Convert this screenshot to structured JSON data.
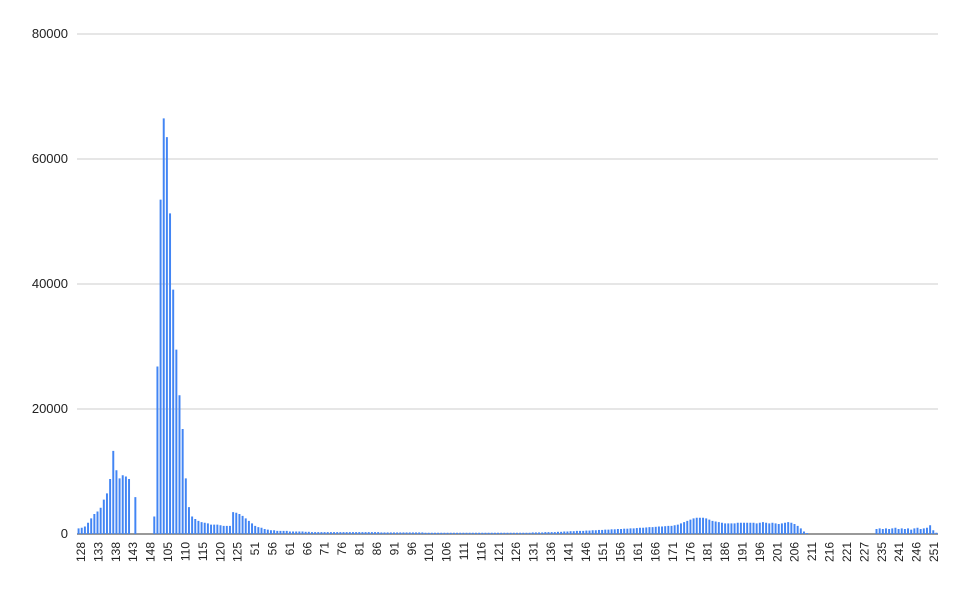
{
  "chart_data": {
    "type": "bar",
    "title": "",
    "xlabel": "",
    "ylabel": "",
    "ylim": [
      0,
      80000
    ],
    "y_ticks": [
      0,
      20000,
      40000,
      60000,
      80000
    ],
    "grid": true,
    "bar_color": "#4285f4",
    "x_tick_labels": [
      "128",
      "133",
      "138",
      "143",
      "148",
      "105",
      "110",
      "115",
      "120",
      "125",
      "51",
      "56",
      "61",
      "66",
      "71",
      "76",
      "81",
      "86",
      "91",
      "96",
      "101",
      "106",
      "111",
      "116",
      "121",
      "126",
      "131",
      "136",
      "141",
      "146",
      "151",
      "156",
      "161",
      "166",
      "171",
      "176",
      "181",
      "186",
      "191",
      "196",
      "201",
      "206",
      "211",
      "216",
      "221",
      "227",
      "235",
      "241",
      "246",
      "251"
    ],
    "values": [
      900,
      1000,
      1200,
      1800,
      2500,
      3200,
      3600,
      4200,
      5500,
      6500,
      8800,
      13300,
      10200,
      8900,
      9400,
      9200,
      8800,
      0,
      5900,
      0,
      0,
      0,
      0,
      0,
      2800,
      26800,
      53500,
      66500,
      63500,
      51300,
      39100,
      29500,
      22200,
      16800,
      8900,
      4300,
      2800,
      2400,
      2100,
      1900,
      1800,
      1700,
      1500,
      1500,
      1500,
      1400,
      1300,
      1300,
      1300,
      3500,
      3400,
      3200,
      2900,
      2500,
      2100,
      1700,
      1300,
      1100,
      1000,
      800,
      700,
      600,
      600,
      500,
      500,
      500,
      500,
      400,
      400,
      400,
      400,
      400,
      350,
      350,
      300,
      300,
      300,
      300,
      300,
      300,
      300,
      300,
      300,
      300,
      300,
      300,
      300,
      300,
      300,
      300,
      300,
      300,
      300,
      300,
      300,
      300,
      250,
      250,
      250,
      250,
      250,
      250,
      250,
      250,
      250,
      250,
      250,
      250,
      250,
      250,
      200,
      200,
      200,
      200,
      200,
      200,
      200,
      200,
      200,
      200,
      200,
      200,
      200,
      200,
      200,
      200,
      200,
      200,
      200,
      200,
      200,
      200,
      200,
      200,
      200,
      200,
      200,
      200,
      200,
      200,
      200,
      200,
      200,
      200,
      250,
      250,
      250,
      250,
      300,
      300,
      300,
      300,
      350,
      350,
      400,
      400,
      450,
      450,
      500,
      500,
      500,
      550,
      550,
      600,
      600,
      650,
      650,
      700,
      700,
      750,
      750,
      800,
      800,
      850,
      850,
      900,
      900,
      950,
      1000,
      1000,
      1050,
      1100,
      1100,
      1150,
      1200,
      1200,
      1250,
      1300,
      1300,
      1400,
      1500,
      1700,
      1900,
      2100,
      2300,
      2500,
      2600,
      2600,
      2600,
      2500,
      2300,
      2100,
      2000,
      1900,
      1800,
      1700,
      1700,
      1700,
      1700,
      1800,
      1800,
      1800,
      1800,
      1800,
      1800,
      1700,
      1800,
      1900,
      1800,
      1700,
      1800,
      1700,
      1600,
      1700,
      1800,
      1900,
      1800,
      1600,
      1300,
      900,
      400,
      150,
      0,
      0,
      0,
      0,
      0,
      0,
      0,
      0,
      0,
      0,
      0,
      0,
      0,
      0,
      0,
      0,
      0,
      0,
      0,
      0,
      0,
      800,
      900,
      800,
      900,
      800,
      900,
      1000,
      800,
      900,
      800,
      900,
      700,
      900,
      1000,
      800,
      900,
      1000,
      1400,
      600,
      200
    ]
  }
}
